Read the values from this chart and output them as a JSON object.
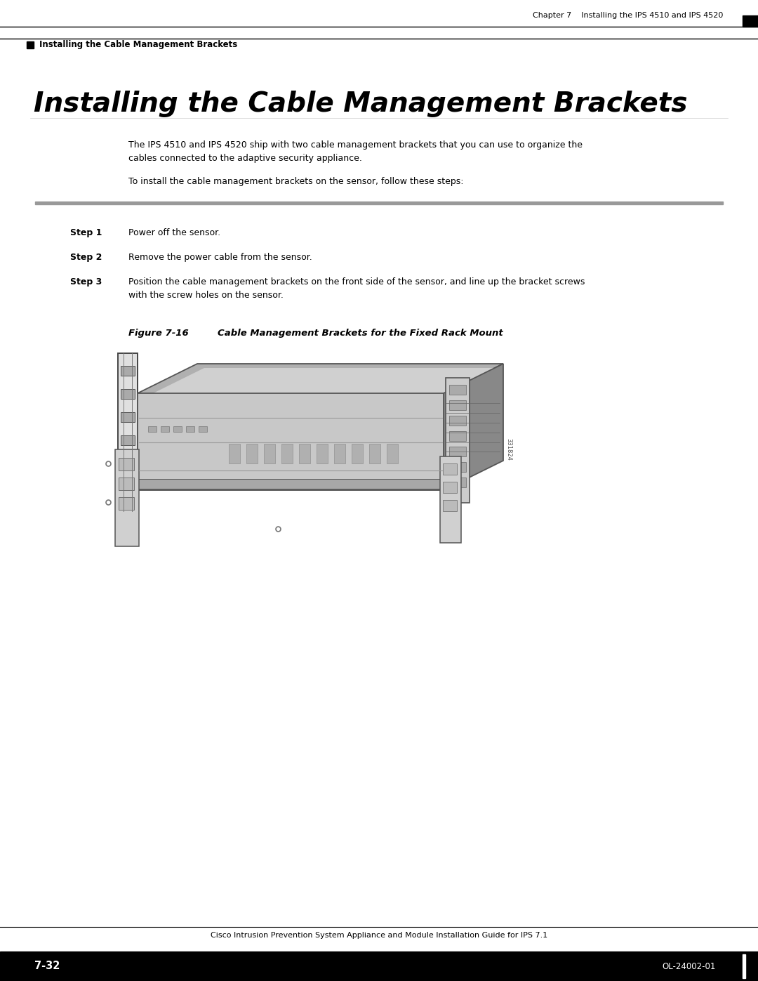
{
  "page_bg": "#ffffff",
  "header_chapter": "Chapter 7    Installing the IPS 4510 and IPS 4520",
  "header_section": "Installing the Cable Management Brackets",
  "title": "Installing the Cable Management Brackets",
  "para1": "The IPS 4510 and IPS 4520 ship with two cable management brackets that you can use to organize the\ncables connected to the adaptive security appliance.",
  "para2": "To install the cable management brackets on the sensor, follow these steps:",
  "step1_label": "Step 1",
  "step1_text": "Power off the sensor.",
  "step2_label": "Step 2",
  "step2_text": "Remove the power cable from the sensor.",
  "step3_label": "Step 3",
  "step3_text": "Position the cable management brackets on the front side of the sensor, and line up the bracket screws\nwith the screw holes on the sensor.",
  "figure_label": "Figure 7-16",
  "figure_caption": "Cable Management Brackets for the Fixed Rack Mount",
  "footer_text": "Cisco Intrusion Prevention System Appliance and Module Installation Guide for IPS 7.1",
  "footer_page": "7-32",
  "footer_right": "OL-24002-01",
  "text_color": "#000000",
  "rule_color": "#808080",
  "header_bg": "#ffffff",
  "footer_bg": "#000000",
  "footer_text_color": "#ffffff"
}
